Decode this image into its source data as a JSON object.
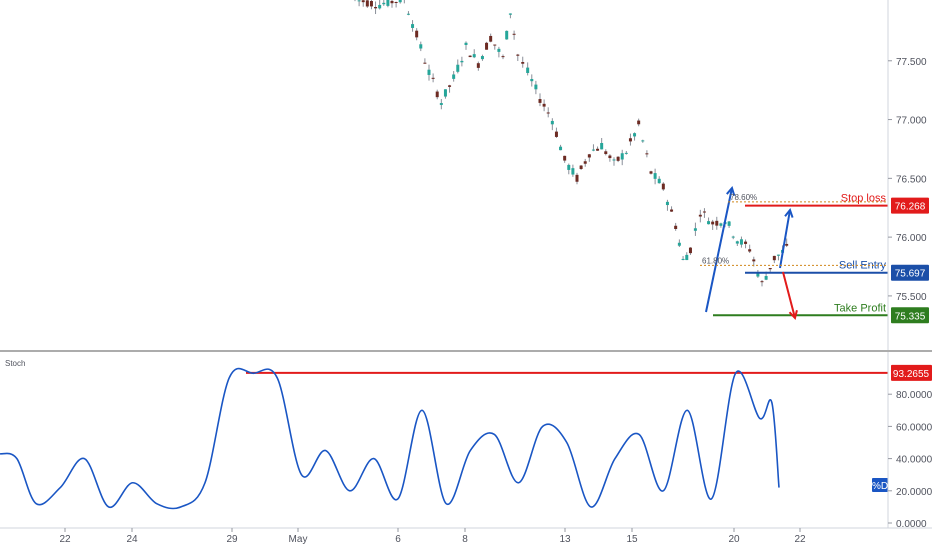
{
  "chart_data": [
    {
      "type": "candlestick",
      "title": "",
      "x_tick_labels": [
        "22",
        "24",
        "29",
        "May",
        "6",
        "8",
        "13",
        "15",
        "20",
        "22"
      ],
      "y_ticks": [
        "77.500",
        "77.000",
        "76.500",
        "76.000",
        "75.500"
      ],
      "ylim": [
        75.21,
        78.0
      ],
      "grid": false,
      "colors": {
        "up": "#26a69a",
        "down": "#6d2b23",
        "wick": "#8a8f99"
      },
      "price_series": [
        {
          "x": 6.0,
          "close": 78.02
        },
        {
          "x": 7.0,
          "close": 77.98
        },
        {
          "x": 8.0,
          "close": 78.03
        },
        {
          "x": 9.0,
          "close": 77.4
        },
        {
          "x": 9.5,
          "close": 77.15
        },
        {
          "x": 10.0,
          "close": 77.35
        },
        {
          "x": 10.5,
          "close": 77.62
        },
        {
          "x": 11.0,
          "close": 77.48
        },
        {
          "x": 11.5,
          "close": 77.7
        },
        {
          "x": 12.0,
          "close": 77.52
        },
        {
          "x": 12.3,
          "close": 77.92
        },
        {
          "x": 12.6,
          "close": 77.55
        },
        {
          "x": 13.0,
          "close": 77.4
        },
        {
          "x": 13.5,
          "close": 77.18
        },
        {
          "x": 14.0,
          "close": 77.0
        },
        {
          "x": 14.5,
          "close": 76.65
        },
        {
          "x": 15.0,
          "close": 76.5
        },
        {
          "x": 15.5,
          "close": 76.72
        },
        {
          "x": 16.0,
          "close": 76.78
        },
        {
          "x": 16.5,
          "close": 76.62
        },
        {
          "x": 17.0,
          "close": 76.73
        },
        {
          "x": 17.5,
          "close": 76.95
        },
        {
          "x": 18.0,
          "close": 76.55
        },
        {
          "x": 18.5,
          "close": 76.42
        },
        {
          "x": 19.0,
          "close": 76.1
        },
        {
          "x": 19.3,
          "close": 75.8
        },
        {
          "x": 19.6,
          "close": 75.9
        },
        {
          "x": 20.0,
          "close": 76.22
        },
        {
          "x": 20.5,
          "close": 76.12
        },
        {
          "x": 21.0,
          "close": 76.15
        },
        {
          "x": 21.5,
          "close": 75.98
        },
        {
          "x": 22.0,
          "close": 75.9
        },
        {
          "x": 22.5,
          "close": 75.6
        },
        {
          "x": 23.0,
          "close": 75.82
        },
        {
          "x": 23.5,
          "close": 75.9
        },
        {
          "x": 24.0,
          "close": 75.72
        },
        {
          "x": 24.5,
          "close": 75.8
        },
        {
          "x": 25.0,
          "close": 75.92
        },
        {
          "x": 25.5,
          "close": 75.72
        },
        {
          "x": 26.0,
          "close": 75.65
        },
        {
          "x": 26.5,
          "close": 75.45
        },
        {
          "x": 26.8,
          "close": 75.37
        },
        {
          "x": 27.1,
          "close": 75.52
        },
        {
          "x": 27.4,
          "close": 75.4
        },
        {
          "x": 27.7,
          "close": 75.6
        },
        {
          "x": 28.0,
          "close": 75.55
        },
        {
          "x": 28.3,
          "close": 75.75
        },
        {
          "x": 28.6,
          "close": 75.95
        },
        {
          "x": 28.9,
          "close": 76.2
        },
        {
          "x": 29.2,
          "close": 76.34
        },
        {
          "x": 29.5,
          "close": 76.3
        },
        {
          "x": 29.8,
          "close": 76.0
        },
        {
          "x": 30.1,
          "close": 76.15
        },
        {
          "x": 30.4,
          "close": 76.02
        },
        {
          "x": 30.7,
          "close": 76.1
        },
        {
          "x": 31.0,
          "close": 76.0
        },
        {
          "x": 31.3,
          "close": 76.22
        },
        {
          "x": 31.6,
          "close": 76.08
        },
        {
          "x": 31.9,
          "close": 75.8
        },
        {
          "x": 32.2,
          "close": 75.72
        }
      ],
      "levels": [
        {
          "label": "Stop loss",
          "value": "76.268",
          "price": 76.268,
          "color": "#e21b1b"
        },
        {
          "label": "Sell Entry",
          "value": "75.697",
          "price": 75.697,
          "color": "#1b4fa8"
        },
        {
          "label": "Take Profit",
          "value": "75.335",
          "price": 75.335,
          "color": "#2e7d1f"
        }
      ],
      "annotations": [
        {
          "text": "61.80%",
          "price": 75.76,
          "color": "#d0861a"
        },
        {
          "text": "78.60%",
          "price": 76.3,
          "color": "#d0861a"
        }
      ]
    },
    {
      "type": "line",
      "title": "Stoch",
      "y_ticks": [
        "80.0000",
        "60.0000",
        "40.0000",
        "20.0000",
        "0.0000"
      ],
      "ylim": [
        0,
        100
      ],
      "series": [
        {
          "name": "%D",
          "color": "#1a56c4",
          "x": [
            0.0,
            0.7,
            1.5,
            2.5,
            3.5,
            4.5,
            5.5,
            6.5,
            7.5,
            8.5,
            9.5,
            10.5,
            11.5,
            12.5,
            13.5,
            14.5,
            15.5,
            16.5,
            17.5,
            18.5,
            19.5,
            20.5,
            21.5,
            22.5,
            23.5,
            24.5,
            25.5,
            26.5,
            27.5,
            28.5,
            29.5,
            30.5,
            31.5,
            32.0,
            32.3
          ],
          "values": [
            43,
            40,
            12,
            22,
            40,
            10,
            25,
            12,
            10,
            25,
            90,
            93,
            90,
            30,
            45,
            20,
            40,
            15,
            70,
            12,
            45,
            55,
            25,
            60,
            50,
            10,
            40,
            55,
            20,
            70,
            15,
            93,
            65,
            75,
            22
          ]
        }
      ],
      "levels": [
        {
          "value": "93.2655",
          "price": 93.2655,
          "color": "#e21b1b"
        }
      ],
      "badge": "%D"
    }
  ],
  "x_labels": [
    "22",
    "24",
    "29",
    "May",
    "6",
    "8",
    "13",
    "15",
    "20",
    "22"
  ]
}
